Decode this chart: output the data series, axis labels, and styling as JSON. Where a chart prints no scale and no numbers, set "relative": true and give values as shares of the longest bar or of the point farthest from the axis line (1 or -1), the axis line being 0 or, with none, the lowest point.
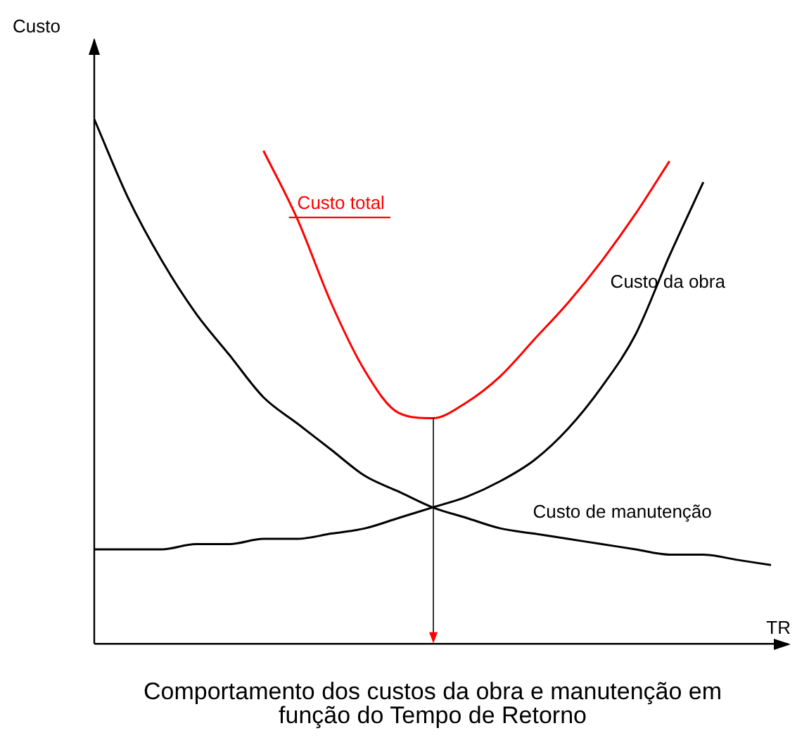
{
  "chart_data": {
    "type": "line",
    "title": "Comportamento dos custos da obra e manutenção em função do Tempo de Retorno",
    "xlabel": "TR",
    "ylabel": "Custo",
    "relative": true,
    "legend": false,
    "grid": false,
    "marker": "none",
    "categories": [
      null,
      null,
      null,
      null,
      null,
      null,
      null,
      null,
      null,
      null,
      null,
      null,
      null,
      null,
      null,
      null,
      null,
      null,
      null,
      null,
      null
    ],
    "series": [
      {
        "name": "Custo total",
        "color": "#ff0000",
        "values": [
          null,
          null,
          null,
          null,
          null,
          0.94,
          0.81,
          0.65,
          0.52,
          0.44,
          0.43,
          0.46,
          0.51,
          0.58,
          0.65,
          0.73,
          0.82,
          0.92,
          null,
          null,
          null
        ]
      },
      {
        "name": "Custo da obra",
        "color": "#000000",
        "values": [
          0.18,
          0.18,
          0.18,
          0.19,
          0.19,
          0.2,
          0.2,
          0.21,
          0.22,
          0.24,
          0.26,
          0.28,
          0.31,
          0.35,
          0.41,
          0.49,
          0.59,
          0.74,
          0.88,
          null,
          null
        ]
      },
      {
        "name": "Custo de manutenção",
        "color": "#000000",
        "values": [
          1,
          0.85,
          0.73,
          0.63,
          0.55,
          0.47,
          0.42,
          0.37,
          0.32,
          0.29,
          0.26,
          0.24,
          0.22,
          0.21,
          0.2,
          0.19,
          0.18,
          0.17,
          0.17,
          0.16,
          0.15
        ]
      }
    ]
  }
}
